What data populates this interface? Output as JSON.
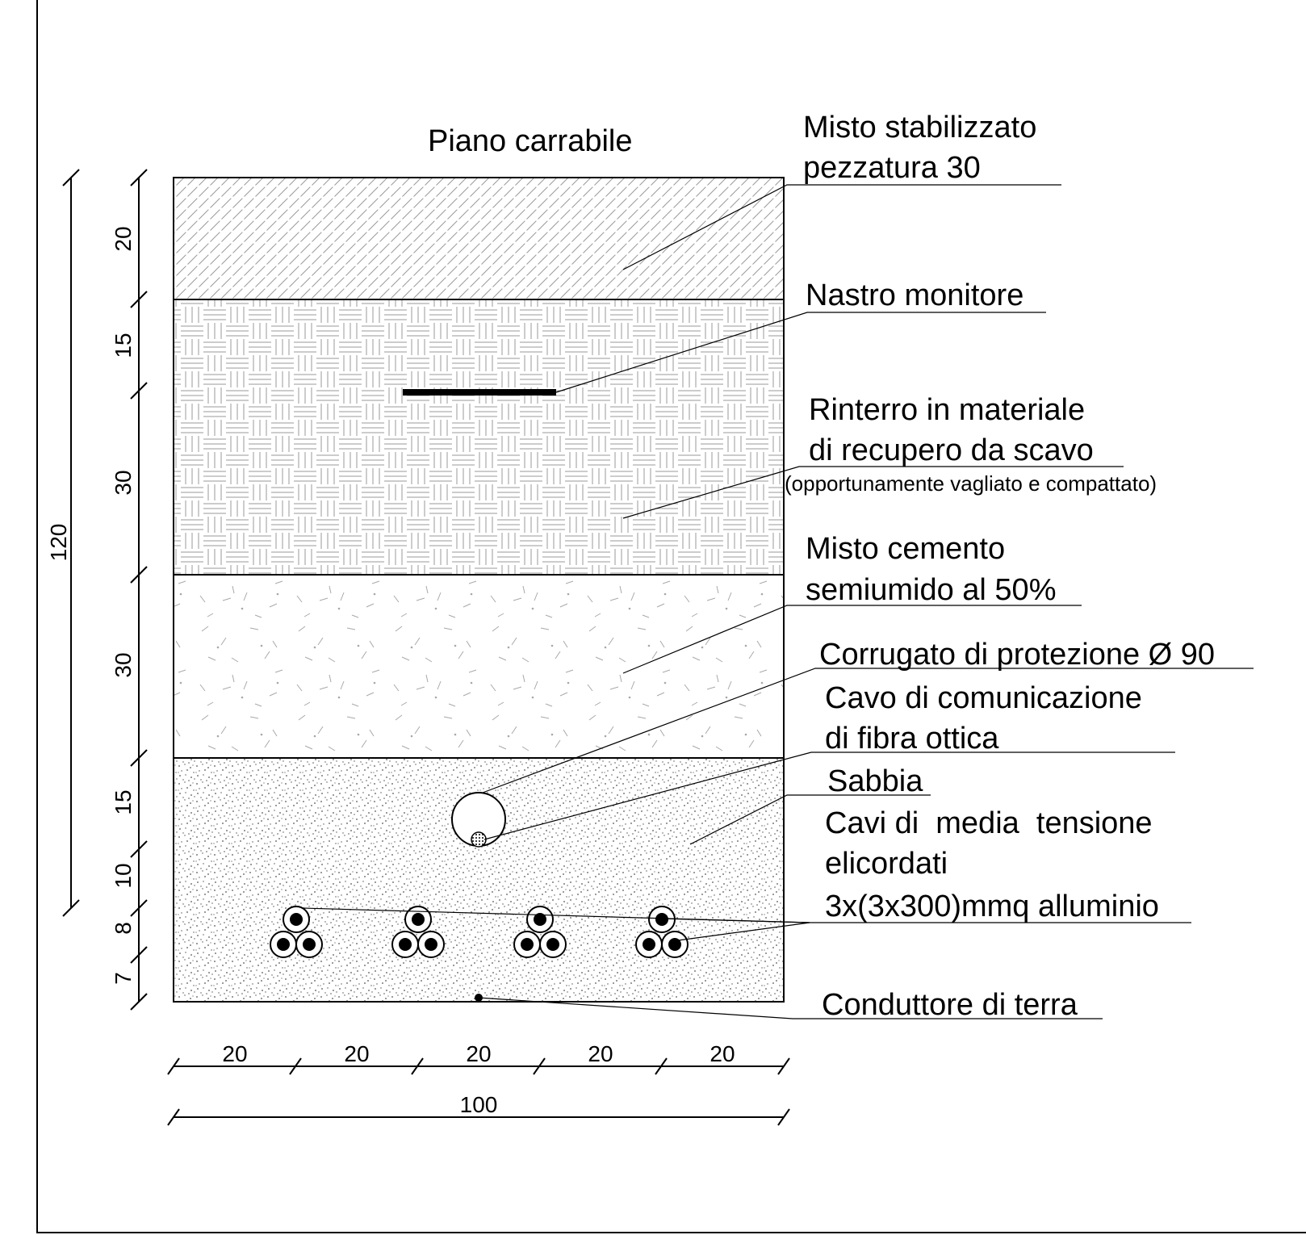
{
  "title": "Piano carrabile",
  "layers": [
    {
      "id": "misto-stabilizzato",
      "thickness": "20",
      "label": [
        "Misto stabilizzato",
        "pezzatura 30"
      ],
      "hatch": "diagonal"
    },
    {
      "id": "rinterro",
      "thickness_top": "15",
      "thickness_bottom": "30",
      "label": [
        "Rinterro in materiale",
        "di recupero da scavo"
      ],
      "note": "(opportunamente vagliato e compattato)",
      "hatch": "basket-weave"
    },
    {
      "id": "misto-cemento",
      "thickness": "30",
      "label": [
        "Misto cemento",
        "semiumido al 50%"
      ],
      "hatch": "random-strokes"
    },
    {
      "id": "sabbia",
      "thickness": [
        "15",
        "10",
        "8",
        "7"
      ],
      "label": [
        "Sabbia"
      ],
      "hatch": "sand-dots"
    }
  ],
  "callouts": {
    "nastro": "Nastro monitore",
    "corrugato": "Corrugato di protezione Ø 90",
    "fibra": [
      "Cavo di comunicazione",
      "di fibra ottica"
    ],
    "cavi": [
      "Cavi di  media  tensione",
      "elicordati",
      "3x(3x300)mmq alluminio"
    ],
    "terra": "Conduttore di terra"
  },
  "dimensions": {
    "total_height": "120",
    "vertical": [
      "20",
      "15",
      "30",
      "30",
      "15",
      "10",
      "8",
      "7"
    ],
    "horizontal": [
      "20",
      "20",
      "20",
      "20",
      "20"
    ],
    "total_width": "100"
  },
  "cable_groups": 4,
  "colors": {
    "line": "#000000",
    "hatch": "#9a9a9a",
    "tape": "#000000"
  }
}
